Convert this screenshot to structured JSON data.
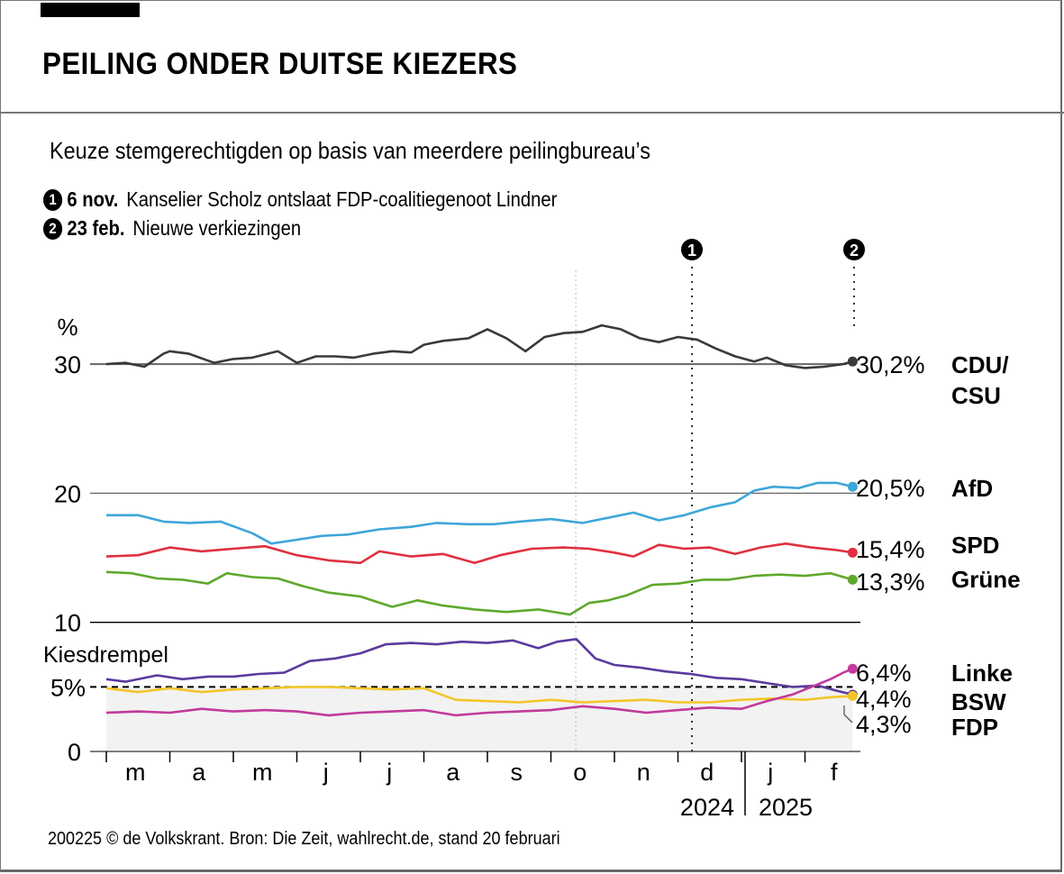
{
  "header": {
    "title": "PEILING ONDER DUITSE KIEZERS",
    "subtitle": "Keuze stemgerechtigden op basis van meerdere peilingbureau’s"
  },
  "events": [
    {
      "marker": "1",
      "date": "6 nov.",
      "description": "Kanselier Scholz ontslaat FDP-coalitiegenoot Lindner"
    },
    {
      "marker": "2",
      "date": "23 feb.",
      "description": "Nieuwe verkiezingen"
    }
  ],
  "footer": "200225 © de Volkskrant. Bron: Die Zeit, wahlrecht.de, stand 20 februari",
  "chart_data": {
    "type": "line",
    "title": "PEILING ONDER DUITSE KIEZERS",
    "subtitle": "Keuze stemgerechtigden op basis van meerdere peilingbureau’s",
    "ylabel": "%",
    "xlabel": "",
    "ylim": [
      0,
      33
    ],
    "yticks": [
      {
        "value": 0,
        "label": "0"
      },
      {
        "value": 5,
        "label": "5%"
      },
      {
        "value": 10,
        "label": "10"
      },
      {
        "value": 20,
        "label": "20"
      },
      {
        "value": 30,
        "label": "30"
      }
    ],
    "threshold": {
      "value": 5,
      "label": "Kiesdrempel",
      "style": "dashed"
    },
    "x_range": [
      "2024-03-01",
      "2025-02-20"
    ],
    "x_month_labels": [
      "m",
      "a",
      "m",
      "j",
      "j",
      "a",
      "s",
      "o",
      "n",
      "d",
      "j",
      "f"
    ],
    "x_year_labels": [
      "2024",
      "2025"
    ],
    "event_lines": [
      {
        "marker": "1",
        "month_index": 8.2,
        "style": "dotted"
      },
      {
        "marker": "2",
        "month_index": 11.75,
        "style": "dotted"
      }
    ],
    "reference_line_month_index": 8.2,
    "x_month_index_note": "x values are months since 1 March 2024",
    "series": [
      {
        "name": "CDU/CSU",
        "label_lines": [
          "CDU/",
          "CSU"
        ],
        "final_label": "30,2%",
        "color": "#3a3a3a",
        "x": [
          0,
          0.3,
          0.6,
          0.9,
          1.0,
          1.3,
          1.7,
          2.0,
          2.3,
          2.7,
          3.0,
          3.3,
          3.6,
          3.9,
          4.2,
          4.5,
          4.8,
          5.0,
          5.3,
          5.7,
          6.0,
          6.3,
          6.6,
          6.9,
          7.2,
          7.5,
          7.8,
          8.1,
          8.4,
          8.7,
          9.0,
          9.3,
          9.6,
          9.9,
          10.2,
          10.4,
          10.7,
          11.0,
          11.3,
          11.6,
          11.75
        ],
        "values": [
          30.0,
          30.1,
          29.8,
          30.8,
          31.0,
          30.8,
          30.1,
          30.4,
          30.5,
          31.0,
          30.1,
          30.6,
          30.6,
          30.5,
          30.8,
          31.0,
          30.9,
          31.5,
          31.8,
          32.0,
          32.7,
          32.0,
          31.0,
          32.1,
          32.4,
          32.5,
          33.0,
          32.7,
          32.0,
          31.7,
          32.1,
          31.9,
          31.2,
          30.6,
          30.2,
          30.5,
          29.9,
          29.7,
          29.8,
          30.0,
          30.2
        ]
      },
      {
        "name": "AfD",
        "label_lines": [
          "AfD"
        ],
        "final_label": "20,5%",
        "color": "#3ea6d9",
        "x": [
          0,
          0.5,
          0.9,
          1.3,
          1.8,
          2.3,
          2.6,
          3.0,
          3.4,
          3.8,
          4.3,
          4.8,
          5.2,
          5.7,
          6.1,
          6.5,
          7.0,
          7.5,
          8.0,
          8.3,
          8.7,
          9.1,
          9.5,
          9.9,
          10.2,
          10.5,
          10.9,
          11.2,
          11.5,
          11.75
        ],
        "values": [
          18.3,
          18.3,
          17.8,
          17.7,
          17.8,
          16.9,
          16.1,
          16.4,
          16.7,
          16.8,
          17.2,
          17.4,
          17.7,
          17.6,
          17.6,
          17.8,
          18.0,
          17.7,
          18.2,
          18.5,
          17.9,
          18.3,
          18.9,
          19.3,
          20.2,
          20.5,
          20.4,
          20.8,
          20.8,
          20.5
        ]
      },
      {
        "name": "SPD",
        "label_lines": [
          "SPD"
        ],
        "final_label": "15,4%",
        "color": "#e0303f",
        "x": [
          0,
          0.5,
          1.0,
          1.5,
          2.0,
          2.5,
          3.0,
          3.5,
          4.0,
          4.3,
          4.8,
          5.3,
          5.8,
          6.2,
          6.7,
          7.2,
          7.6,
          8.0,
          8.3,
          8.7,
          9.1,
          9.5,
          9.9,
          10.3,
          10.7,
          11.1,
          11.5,
          11.75
        ],
        "values": [
          15.1,
          15.2,
          15.8,
          15.5,
          15.7,
          15.9,
          15.2,
          14.8,
          14.6,
          15.5,
          15.1,
          15.3,
          14.6,
          15.2,
          15.7,
          15.8,
          15.7,
          15.4,
          15.1,
          16.0,
          15.7,
          15.8,
          15.3,
          15.8,
          16.1,
          15.8,
          15.6,
          15.4
        ]
      },
      {
        "name": "Grüne",
        "label_lines": [
          "Grüne"
        ],
        "final_label": "13,3%",
        "color": "#5fa82c",
        "x": [
          0,
          0.4,
          0.8,
          1.2,
          1.6,
          1.9,
          2.3,
          2.7,
          3.1,
          3.5,
          4.0,
          4.5,
          4.9,
          5.3,
          5.8,
          6.3,
          6.8,
          7.3,
          7.6,
          7.9,
          8.2,
          8.6,
          9.0,
          9.4,
          9.8,
          10.2,
          10.6,
          11.0,
          11.4,
          11.75
        ],
        "values": [
          13.9,
          13.8,
          13.4,
          13.3,
          13.0,
          13.8,
          13.5,
          13.4,
          12.8,
          12.3,
          12.0,
          11.2,
          11.7,
          11.3,
          11.0,
          10.8,
          11.0,
          10.6,
          11.5,
          11.7,
          12.1,
          12.9,
          13.0,
          13.3,
          13.3,
          13.6,
          13.7,
          13.6,
          13.8,
          13.3
        ]
      },
      {
        "name": "BSW",
        "label_lines": [
          "BSW"
        ],
        "final_label": "4,4%",
        "color": "#5b3a9e",
        "x": [
          0,
          0.3,
          0.8,
          1.2,
          1.6,
          2.0,
          2.4,
          2.8,
          3.2,
          3.6,
          4.0,
          4.4,
          4.8,
          5.2,
          5.6,
          6.0,
          6.4,
          6.8,
          7.1,
          7.4,
          7.7,
          8.0,
          8.4,
          8.8,
          9.2,
          9.6,
          10.0,
          10.4,
          10.8,
          11.2,
          11.5,
          11.75
        ],
        "values": [
          5.6,
          5.4,
          5.9,
          5.6,
          5.8,
          5.8,
          6.0,
          6.1,
          7.0,
          7.2,
          7.6,
          8.3,
          8.4,
          8.3,
          8.5,
          8.4,
          8.6,
          8.0,
          8.5,
          8.7,
          7.2,
          6.7,
          6.5,
          6.2,
          6.0,
          5.7,
          5.6,
          5.3,
          5.0,
          5.1,
          4.7,
          4.4
        ]
      },
      {
        "name": "FDP",
        "label_lines": [
          "FDP"
        ],
        "final_label": "4,3%",
        "color": "#f2c628",
        "x": [
          0,
          0.5,
          1.0,
          1.5,
          2.0,
          2.5,
          3.0,
          3.5,
          4.0,
          4.5,
          5.0,
          5.5,
          6.0,
          6.5,
          7.0,
          7.5,
          8.0,
          8.5,
          9.0,
          9.5,
          10.0,
          10.5,
          11.0,
          11.4,
          11.75
        ],
        "values": [
          4.9,
          4.6,
          4.9,
          4.6,
          4.8,
          4.9,
          5.0,
          5.0,
          4.9,
          4.8,
          4.9,
          4.0,
          3.9,
          3.8,
          4.0,
          3.8,
          3.9,
          4.0,
          3.8,
          3.8,
          4.0,
          4.1,
          4.0,
          4.2,
          4.3
        ]
      },
      {
        "name": "Linke",
        "label_lines": [
          "Linke"
        ],
        "final_label": "6,4%",
        "color": "#c23a9b",
        "x": [
          0,
          0.5,
          1.0,
          1.5,
          2.0,
          2.5,
          3.0,
          3.5,
          4.0,
          4.5,
          5.0,
          5.5,
          6.0,
          6.5,
          7.0,
          7.5,
          8.0,
          8.5,
          9.0,
          9.5,
          10.0,
          10.4,
          10.8,
          11.1,
          11.4,
          11.6,
          11.75
        ],
        "values": [
          3.0,
          3.1,
          3.0,
          3.3,
          3.1,
          3.2,
          3.1,
          2.8,
          3.0,
          3.1,
          3.2,
          2.8,
          3.0,
          3.1,
          3.2,
          3.5,
          3.3,
          3.0,
          3.2,
          3.4,
          3.3,
          3.9,
          4.4,
          5.0,
          5.6,
          6.1,
          6.4
        ]
      }
    ]
  }
}
